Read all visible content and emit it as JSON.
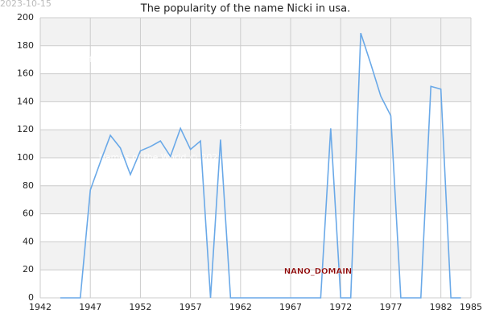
{
  "chart_data": {
    "type": "line",
    "title": "The popularity of the name Nicki in usa.",
    "date": "2023-10-15",
    "watermark": "Names of the World © 2023",
    "annotation": "NANO_DOMAIN",
    "x": [
      1944,
      1945,
      1946,
      1947,
      1948,
      1949,
      1950,
      1951,
      1952,
      1953,
      1954,
      1955,
      1956,
      1957,
      1958,
      1959,
      1960,
      1961,
      1962,
      1963,
      1964,
      1965,
      1966,
      1967,
      1968,
      1969,
      1970,
      1971,
      1972,
      1973,
      1974,
      1975,
      1976,
      1977,
      1978,
      1979,
      1980,
      1981,
      1982,
      1983,
      1984
    ],
    "series": [
      {
        "name": "Nicki",
        "color": "#6aa9e8",
        "values": [
          0,
          0,
          0,
          77,
          97,
          116,
          107,
          88,
          105,
          108,
          112,
          101,
          121,
          106,
          112,
          0,
          113,
          0,
          0,
          0,
          0,
          0,
          0,
          0,
          0,
          0,
          0,
          121,
          0,
          0,
          189,
          167,
          144,
          130,
          0,
          0,
          0,
          151,
          149,
          0,
          0
        ]
      }
    ],
    "xlim": [
      1942,
      1985
    ],
    "xticks": [
      1942,
      1947,
      1952,
      1957,
      1962,
      1967,
      1972,
      1977,
      1982,
      1985
    ],
    "ylim": [
      0,
      200
    ],
    "yticks": [
      0,
      20,
      40,
      60,
      80,
      100,
      120,
      140,
      160,
      180,
      200
    ],
    "grid": true
  }
}
